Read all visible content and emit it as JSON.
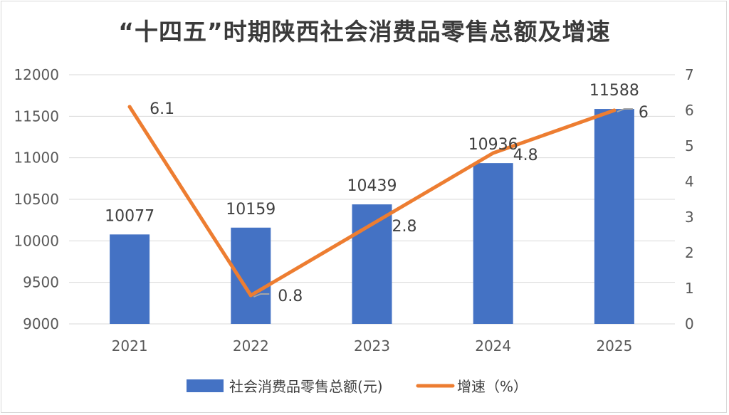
{
  "chart_data": {
    "type": "bar+line",
    "title": "“十四五”时期陕西社会消费品零售总额及增速",
    "categories": [
      "2021",
      "2022",
      "2023",
      "2024",
      "2025"
    ],
    "series": [
      {
        "name": "社会消费品零售总额(元)",
        "type": "bar",
        "axis": "left",
        "values": [
          10077,
          10159,
          10439,
          10936,
          11588
        ],
        "labels": [
          "10077",
          "10159",
          "10439",
          "10936",
          "11588"
        ],
        "color": "#4472c4"
      },
      {
        "name": "增速（%）",
        "type": "line",
        "axis": "right",
        "values": [
          6.1,
          0.8,
          2.8,
          4.8,
          6
        ],
        "labels": [
          "6.1",
          "0.8",
          "2.8",
          "4.8",
          "6"
        ],
        "color": "#ed7d31"
      }
    ],
    "y_left": {
      "min": 9000,
      "max": 12000,
      "ticks": [
        "9000",
        "9500",
        "10000",
        "10500",
        "11000",
        "11500",
        "12000"
      ]
    },
    "y_right": {
      "min": 0,
      "max": 7,
      "ticks": [
        "0",
        "1",
        "2",
        "3",
        "4",
        "5",
        "6",
        "7"
      ]
    },
    "grid": true,
    "legend_position": "bottom",
    "gridline_color": "#d9d9d9",
    "leader_color": "#a5a5a5"
  }
}
